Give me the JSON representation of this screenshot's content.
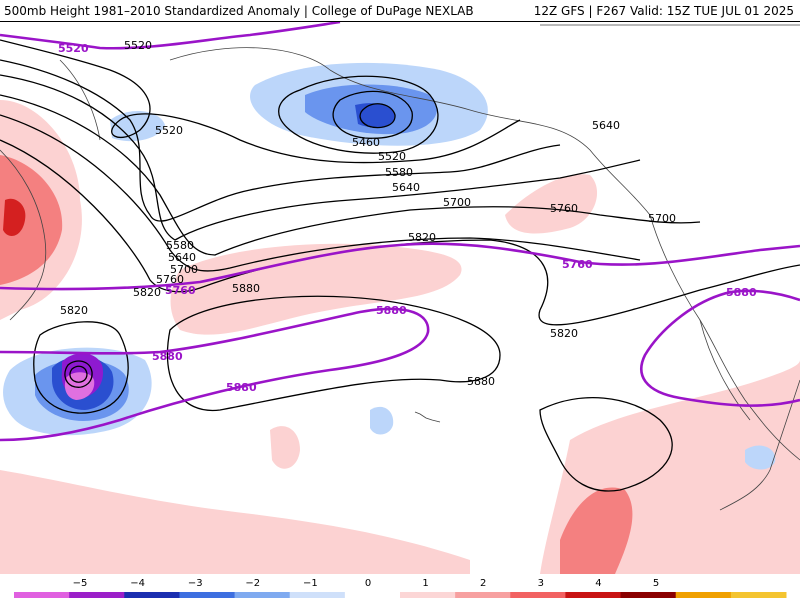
{
  "header": {
    "left": "500mb Height 1981–2010 Standardized Anomaly | College of DuPage NEXLAB",
    "right": "12Z GFS | F267 Valid: 15Z TUE JUL 01 2025"
  },
  "contour_labels": [
    "5520",
    "5520",
    "5520",
    "5460",
    "5520",
    "5580",
    "5640",
    "5640",
    "5700",
    "5760",
    "5700",
    "5580",
    "5640",
    "5700",
    "5760",
    "5820",
    "5820",
    "5760",
    "5760",
    "5880",
    "5820",
    "5880",
    "5880",
    "5880",
    "5880",
    "5820",
    "5880"
  ],
  "colorbar": {
    "ticks": [
      "−5",
      "−4",
      "−3",
      "−2",
      "−1",
      "0",
      "1",
      "2",
      "3",
      "4",
      "5"
    ],
    "colors": [
      "#e060e0",
      "#9b1fc9",
      "#1b2fb0",
      "#3d6fe0",
      "#7faaf0",
      "#cfe0fa",
      "#ffffff",
      "#fcd6d6",
      "#f7a0a0",
      "#f26262",
      "#c81414",
      "#8a0000",
      "#f0a000",
      "#f4c430"
    ]
  },
  "colors": {
    "purple_contour": "#9a14c8",
    "black_contour": "#000000",
    "pos_anomaly_1": "#fcd2d2",
    "pos_anomaly_2": "#f48080",
    "pos_anomaly_3": "#d42020",
    "neg_anomaly_1": "#bcd6fa",
    "neg_anomaly_2": "#6a95ee",
    "neg_anomaly_3": "#2a4fd0",
    "neg_anomaly_4": "#8e1ad0",
    "neg_anomaly_5": "#e070e0"
  }
}
